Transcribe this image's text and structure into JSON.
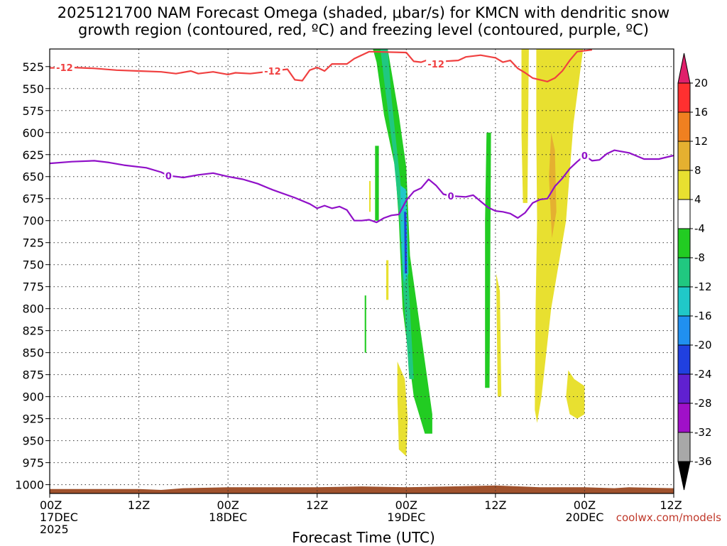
{
  "title": {
    "line1": "2025121700 NAM Forecast Omega (shaded, μbar/s) for KMCN with dendritic snow",
    "line2": "growth region (contoured, red, ºC) and freezing level (contoured, purple, ºC)"
  },
  "credit": "coolwx.com/models",
  "chart_data": {
    "type": "time-height",
    "xlabel": "Forecast Time (UTC)",
    "x_range_hours": [
      0,
      84
    ],
    "y_range_mb": [
      505,
      1010
    ],
    "y_ticks": [
      525,
      550,
      575,
      600,
      625,
      650,
      675,
      700,
      725,
      750,
      775,
      800,
      825,
      850,
      875,
      900,
      925,
      950,
      975,
      1000
    ],
    "x_ticks": [
      {
        "hour": 0,
        "line1": "00Z",
        "line2": "17DEC",
        "line3": "2025"
      },
      {
        "hour": 12,
        "line1": "12Z",
        "line2": "",
        "line3": ""
      },
      {
        "hour": 24,
        "line1": "00Z",
        "line2": "18DEC",
        "line3": ""
      },
      {
        "hour": 36,
        "line1": "12Z",
        "line2": "",
        "line3": ""
      },
      {
        "hour": 48,
        "line1": "00Z",
        "line2": "19DEC",
        "line3": ""
      },
      {
        "hour": 60,
        "line1": "12Z",
        "line2": "",
        "line3": ""
      },
      {
        "hour": 72,
        "line1": "00Z",
        "line2": "20DEC",
        "line3": ""
      },
      {
        "hour": 84,
        "line1": "12Z",
        "line2": "",
        "line3": ""
      }
    ],
    "colorbar": {
      "labels": [
        "20",
        "16",
        "12",
        "8",
        "4",
        "-4",
        "-8",
        "-12",
        "-16",
        "-20",
        "-24",
        "-28",
        "-32",
        "-36"
      ],
      "colors": [
        "#e0206b",
        "#ff3030",
        "#f08020",
        "#e5b030",
        "#e8e030",
        "#ffffff",
        "#22cc22",
        "#20c880",
        "#20c8c8",
        "#2090f0",
        "#2040e0",
        "#6020d0",
        "#a010c8",
        "#a8a8a8",
        "#000000"
      ]
    },
    "series": [
      {
        "name": "dendritic growth -12C",
        "color": "#f04040",
        "label": "-12",
        "points": [
          [
            0,
            526.5
          ],
          [
            3,
            526
          ],
          [
            6,
            527
          ],
          [
            9,
            529
          ],
          [
            12,
            530
          ],
          [
            15,
            531
          ],
          [
            17,
            533
          ],
          [
            19,
            530
          ],
          [
            20,
            533
          ],
          [
            22,
            531
          ],
          [
            24,
            534
          ],
          [
            25,
            532
          ],
          [
            27,
            533
          ],
          [
            30,
            530
          ],
          [
            32,
            528
          ],
          [
            33,
            540
          ],
          [
            34,
            541
          ],
          [
            35,
            529
          ],
          [
            36,
            526
          ],
          [
            37,
            530
          ],
          [
            38,
            522
          ],
          [
            40,
            522
          ],
          [
            41,
            516
          ],
          [
            43,
            508
          ],
          [
            48,
            509
          ],
          [
            49,
            519
          ],
          [
            50,
            520
          ],
          [
            51,
            517
          ],
          [
            52,
            522
          ],
          [
            53,
            519
          ],
          [
            55,
            518
          ],
          [
            56,
            514
          ],
          [
            58,
            512
          ],
          [
            60,
            515
          ],
          [
            61,
            520
          ],
          [
            62,
            518
          ],
          [
            63,
            527
          ],
          [
            64,
            532
          ],
          [
            65,
            538
          ],
          [
            66,
            540
          ],
          [
            67,
            542
          ],
          [
            68,
            538
          ],
          [
            69,
            530
          ],
          [
            70,
            518
          ],
          [
            71,
            508
          ],
          [
            73,
            506
          ]
        ]
      },
      {
        "name": "freezing level 0C",
        "color": "#9010c8",
        "label": "0",
        "points": [
          [
            0,
            635
          ],
          [
            3,
            633
          ],
          [
            6,
            632
          ],
          [
            8,
            634
          ],
          [
            10,
            637
          ],
          [
            13,
            640
          ],
          [
            15,
            645
          ],
          [
            16,
            649
          ],
          [
            17,
            650
          ],
          [
            18,
            651
          ],
          [
            20,
            648
          ],
          [
            22,
            646
          ],
          [
            24,
            650
          ],
          [
            26,
            653
          ],
          [
            28,
            658
          ],
          [
            30,
            665
          ],
          [
            33,
            674
          ],
          [
            35,
            681
          ],
          [
            36,
            686
          ],
          [
            37,
            683
          ],
          [
            38,
            686
          ],
          [
            39,
            684
          ],
          [
            40,
            688
          ],
          [
            41,
            700
          ],
          [
            42,
            700
          ],
          [
            43,
            699
          ],
          [
            44,
            702
          ],
          [
            45,
            697
          ],
          [
            46,
            694
          ],
          [
            47,
            693
          ],
          [
            48,
            677
          ],
          [
            49,
            667
          ],
          [
            50,
            663
          ],
          [
            51,
            653
          ],
          [
            52,
            660
          ],
          [
            53,
            670
          ],
          [
            54,
            672
          ],
          [
            56,
            673
          ],
          [
            57,
            671
          ],
          [
            58,
            678
          ],
          [
            59,
            685
          ],
          [
            60,
            689
          ],
          [
            61,
            690
          ],
          [
            62,
            692
          ],
          [
            63,
            697
          ],
          [
            64,
            691
          ],
          [
            65,
            680
          ],
          [
            66,
            676
          ],
          [
            67,
            675
          ],
          [
            68,
            661
          ],
          [
            69,
            652
          ],
          [
            70,
            641
          ],
          [
            71,
            633
          ],
          [
            72,
            626
          ],
          [
            73,
            632
          ],
          [
            74,
            631
          ],
          [
            75,
            624
          ],
          [
            76,
            620
          ],
          [
            78,
            623
          ],
          [
            80,
            630
          ],
          [
            82,
            630
          ],
          [
            84,
            626
          ]
        ]
      }
    ],
    "omega_regions": [
      {
        "value": "-8",
        "color": "#22cc22",
        "points": [
          [
            43.5,
            505
          ],
          [
            45.5,
            505
          ],
          [
            47,
            580
          ],
          [
            48,
            640
          ],
          [
            48.5,
            740
          ],
          [
            49.5,
            800
          ],
          [
            51.5,
            920
          ],
          [
            51.5,
            942
          ],
          [
            50.5,
            942
          ],
          [
            49,
            900
          ],
          [
            47.5,
            800
          ],
          [
            47,
            700
          ],
          [
            46.5,
            640
          ],
          [
            45,
            580
          ],
          [
            44,
            520
          ]
        ]
      },
      {
        "value": "-12",
        "color": "#20c880",
        "points": [
          [
            44.5,
            505
          ],
          [
            45.5,
            505
          ],
          [
            46,
            560
          ],
          [
            47,
            640
          ],
          [
            47.8,
            700
          ],
          [
            48.5,
            800
          ],
          [
            49,
            880
          ],
          [
            48.4,
            880
          ],
          [
            47.6,
            780
          ],
          [
            47.1,
            700
          ],
          [
            46.2,
            620
          ],
          [
            45,
            540
          ]
        ]
      },
      {
        "value": "-16",
        "color": "#20c8c8",
        "points": [
          [
            47.2,
            660
          ],
          [
            48,
            665
          ],
          [
            48.3,
            760
          ],
          [
            47.7,
            770
          ],
          [
            47.3,
            720
          ]
        ]
      },
      {
        "value": "-20",
        "color": "#2040e0",
        "points": [
          [
            47.7,
            690
          ],
          [
            48,
            690
          ],
          [
            48.1,
            760
          ],
          [
            47.8,
            760
          ]
        ]
      },
      {
        "value": "-8",
        "color": "#22cc22",
        "points": [
          [
            58.8,
            600
          ],
          [
            59.4,
            600
          ],
          [
            59.2,
            890
          ],
          [
            58.6,
            890
          ],
          [
            58.6,
            700
          ]
        ]
      },
      {
        "value": "-8",
        "color": "#22cc22",
        "points": [
          [
            43.8,
            615
          ],
          [
            44.3,
            615
          ],
          [
            44.3,
            700
          ],
          [
            43.8,
            700
          ]
        ]
      },
      {
        "value": "-8",
        "color": "#22cc22",
        "points": [
          [
            42.4,
            785
          ],
          [
            42.6,
            785
          ],
          [
            42.6,
            850
          ],
          [
            42.4,
            850
          ]
        ]
      },
      {
        "value": "4",
        "color": "#e8e030",
        "points": [
          [
            63.5,
            505
          ],
          [
            64.5,
            505
          ],
          [
            64.3,
            680
          ],
          [
            63.7,
            680
          ],
          [
            63.5,
            600
          ]
        ]
      },
      {
        "value": "4",
        "color": "#e8e030",
        "points": [
          [
            65.5,
            505
          ],
          [
            67,
            505
          ],
          [
            70,
            505
          ],
          [
            71.8,
            505
          ],
          [
            70.5,
            590
          ],
          [
            69.5,
            700
          ],
          [
            67.5,
            800
          ],
          [
            66.2,
            900
          ],
          [
            65.6,
            930
          ],
          [
            65.3,
            915
          ],
          [
            65.4,
            800
          ],
          [
            65.6,
            700
          ],
          [
            65.5,
            600
          ]
        ]
      },
      {
        "value": "8",
        "color": "#e5b030",
        "points": [
          [
            67.5,
            600
          ],
          [
            68,
            620
          ],
          [
            68.2,
            690
          ],
          [
            67.6,
            720
          ],
          [
            67.2,
            650
          ]
        ]
      },
      {
        "value": "4",
        "color": "#e8e030",
        "points": [
          [
            69.8,
            870
          ],
          [
            70.6,
            880
          ],
          [
            72,
            888
          ],
          [
            72,
            920
          ],
          [
            71,
            925
          ],
          [
            70,
            920
          ],
          [
            69.5,
            900
          ]
        ]
      },
      {
        "value": "4",
        "color": "#e8e030",
        "points": [
          [
            46.8,
            860
          ],
          [
            47.8,
            880
          ],
          [
            48.2,
            925
          ],
          [
            48,
            968
          ],
          [
            47,
            960
          ],
          [
            46.8,
            900
          ]
        ]
      },
      {
        "value": "4",
        "color": "#e8e030",
        "points": [
          [
            60.1,
            760
          ],
          [
            60.6,
            780
          ],
          [
            60.8,
            900
          ],
          [
            60.3,
            900
          ]
        ]
      },
      {
        "value": "4",
        "color": "#e8e030",
        "points": [
          [
            45.3,
            745
          ],
          [
            45.6,
            745
          ],
          [
            45.6,
            790
          ],
          [
            45.3,
            790
          ]
        ]
      },
      {
        "value": "4",
        "color": "#e8e030",
        "points": [
          [
            43.0,
            655
          ],
          [
            43.2,
            655
          ],
          [
            43.2,
            690
          ],
          [
            43.0,
            690
          ]
        ]
      }
    ],
    "surface_pressure_mb": [
      [
        0,
        1005
      ],
      [
        12,
        1005
      ],
      [
        15,
        1006
      ],
      [
        18,
        1004
      ],
      [
        24,
        1003
      ],
      [
        36,
        1003
      ],
      [
        42,
        1002
      ],
      [
        48,
        1003
      ],
      [
        54,
        1002
      ],
      [
        60,
        1001
      ],
      [
        66,
        1003
      ],
      [
        72,
        1003
      ],
      [
        76,
        1004
      ],
      [
        78,
        1003
      ],
      [
        84,
        1004
      ]
    ]
  }
}
